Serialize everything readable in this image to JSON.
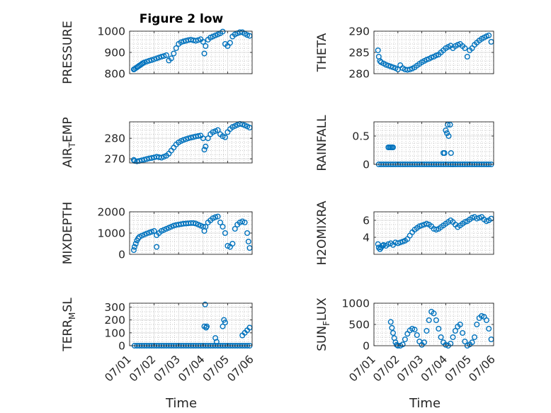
{
  "figure": {
    "title": "Figure 2 low",
    "marker_color": "#0072BD",
    "xlabel": "Time",
    "x_ticklabels": [
      "07/01",
      "07/02",
      "07/03",
      "07/04",
      "07/05",
      "07/06"
    ]
  },
  "chart_data": [
    {
      "type": "scatter",
      "id": "pressure",
      "title": "Figure 2 low",
      "ylabel": "PRESSURE",
      "ylim": [
        800,
        1000
      ],
      "yticks": [
        800,
        900,
        1000
      ],
      "xlim": [
        "07/01",
        "07/06"
      ],
      "grid": true,
      "x_days": [
        1.17,
        1.2,
        1.25,
        1.3,
        1.35,
        1.4,
        1.45,
        1.5,
        1.55,
        1.6,
        1.7,
        1.8,
        1.9,
        2.0,
        2.1,
        2.2,
        2.3,
        2.4,
        2.5,
        2.6,
        2.7,
        2.8,
        2.9,
        3.0,
        3.1,
        3.2,
        3.3,
        3.4,
        3.5,
        3.6,
        3.7,
        3.8,
        3.9,
        4.0,
        4.05,
        4.1,
        4.2,
        4.3,
        4.4,
        4.5,
        4.6,
        4.7,
        4.8,
        4.9,
        5.0,
        5.1,
        5.2,
        5.3,
        5.4,
        5.5,
        5.6,
        5.7,
        5.8,
        5.9
      ],
      "y": [
        820,
        822,
        826,
        830,
        834,
        838,
        842,
        846,
        850,
        853,
        857,
        861,
        864,
        868,
        872,
        876,
        880,
        883,
        887,
        862,
        872,
        895,
        920,
        940,
        948,
        952,
        955,
        958,
        960,
        957,
        955,
        958,
        962,
        950,
        895,
        930,
        960,
        970,
        975,
        980,
        985,
        990,
        998,
        940,
        930,
        945,
        975,
        985,
        990,
        995,
        995,
        988,
        982,
        978
      ]
    },
    {
      "type": "scatter",
      "id": "theta",
      "ylabel": "THETA",
      "ylim": [
        280,
        290
      ],
      "yticks": [
        280,
        285,
        290
      ],
      "xlim": [
        "07/01",
        "07/06"
      ],
      "grid": true,
      "x_days": [
        1.17,
        1.2,
        1.25,
        1.3,
        1.4,
        1.5,
        1.6,
        1.7,
        1.8,
        1.9,
        2.0,
        2.1,
        2.2,
        2.3,
        2.4,
        2.5,
        2.6,
        2.7,
        2.8,
        2.9,
        3.0,
        3.1,
        3.2,
        3.3,
        3.4,
        3.5,
        3.6,
        3.7,
        3.8,
        3.9,
        4.0,
        4.1,
        4.2,
        4.3,
        4.4,
        4.5,
        4.6,
        4.7,
        4.8,
        4.9,
        5.0,
        5.1,
        5.2,
        5.3,
        5.4,
        5.5,
        5.6,
        5.7,
        5.8,
        5.9
      ],
      "y": [
        285.5,
        284.0,
        283.0,
        282.7,
        282.4,
        282.1,
        281.9,
        281.7,
        281.5,
        281.3,
        281.0,
        282.0,
        281.3,
        281.0,
        280.9,
        281.0,
        281.2,
        281.5,
        281.9,
        282.3,
        282.7,
        283.0,
        283.3,
        283.5,
        283.8,
        284.0,
        284.3,
        284.5,
        285.0,
        285.5,
        286.0,
        286.3,
        286.6,
        286.0,
        286.5,
        286.8,
        287.0,
        286.5,
        286.0,
        284.0,
        285.5,
        286.0,
        286.8,
        287.3,
        287.8,
        288.2,
        288.5,
        288.8,
        289.0,
        287.5
      ]
    },
    {
      "type": "scatter",
      "id": "air_temp",
      "ylabel": "AIR_TEMP",
      "ylim": [
        268,
        288
      ],
      "yticks": [
        270,
        280
      ],
      "xlim": [
        "07/01",
        "07/06"
      ],
      "grid": true,
      "x_days": [
        1.17,
        1.2,
        1.3,
        1.4,
        1.5,
        1.6,
        1.7,
        1.8,
        1.9,
        2.0,
        2.1,
        2.2,
        2.3,
        2.4,
        2.5,
        2.6,
        2.7,
        2.8,
        2.9,
        3.0,
        3.1,
        3.2,
        3.3,
        3.4,
        3.5,
        3.6,
        3.7,
        3.8,
        3.9,
        4.0,
        4.05,
        4.1,
        4.2,
        4.3,
        4.4,
        4.5,
        4.6,
        4.7,
        4.8,
        4.9,
        5.0,
        5.1,
        5.2,
        5.3,
        5.4,
        5.5,
        5.6,
        5.7,
        5.8,
        5.9
      ],
      "y": [
        269.5,
        269.0,
        268.8,
        269.0,
        269.3,
        269.6,
        269.9,
        270.2,
        270.4,
        270.7,
        271.0,
        270.8,
        270.6,
        271.0,
        271.5,
        272.5,
        274.0,
        275.5,
        277.0,
        278.0,
        278.7,
        279.2,
        279.6,
        280.0,
        280.3,
        280.6,
        280.9,
        281.1,
        281.3,
        280.0,
        274.5,
        276.0,
        280.0,
        282.0,
        283.0,
        283.5,
        284.0,
        282.0,
        281.0,
        280.5,
        283.0,
        284.5,
        285.5,
        286.0,
        286.5,
        287.0,
        286.8,
        286.3,
        285.8,
        285.2
      ]
    },
    {
      "type": "scatter",
      "id": "rainfall",
      "ylabel": "RAINFALL",
      "ylim": [
        0,
        0.75
      ],
      "yticks": [
        0,
        0.5
      ],
      "xlim": [
        "07/01",
        "07/06"
      ],
      "grid": true,
      "x_days": [
        1.2,
        1.3,
        1.4,
        1.5,
        1.6,
        1.7,
        1.8,
        1.9,
        2.0,
        2.1,
        2.2,
        2.3,
        2.4,
        2.5,
        2.6,
        2.7,
        2.8,
        2.9,
        3.0,
        3.1,
        3.2,
        3.3,
        3.4,
        3.5,
        3.6,
        3.7,
        3.8,
        3.9,
        4.0,
        4.1,
        4.2,
        4.3,
        4.4,
        4.5,
        4.6,
        4.7,
        4.8,
        4.9,
        5.0,
        5.1,
        5.2,
        5.3,
        5.4,
        5.5,
        5.6,
        5.7,
        5.8,
        5.9,
        1.6,
        1.65,
        1.7,
        1.75,
        1.8,
        3.9,
        3.95,
        4.0,
        4.05,
        4.08,
        4.12,
        4.18,
        4.22,
        4.3
      ],
      "y": [
        0,
        0,
        0,
        0,
        0,
        0,
        0,
        0,
        0,
        0,
        0,
        0,
        0,
        0,
        0,
        0,
        0,
        0,
        0,
        0,
        0,
        0,
        0,
        0,
        0,
        0,
        0,
        0,
        0,
        0,
        0,
        0,
        0,
        0,
        0,
        0,
        0,
        0,
        0,
        0,
        0,
        0,
        0,
        0,
        0,
        0,
        0,
        0,
        0.3,
        0.3,
        0.3,
        0.3,
        0.3,
        0.2,
        0.2,
        0.6,
        0.55,
        0.7,
        0.5,
        0.7,
        0.2,
        0
      ]
    },
    {
      "type": "scatter",
      "id": "mixdepth",
      "ylabel": "MIXDEPTH",
      "ylim": [
        0,
        2000
      ],
      "yticks": [
        0,
        1000,
        2000
      ],
      "xlim": [
        "07/01",
        "07/06"
      ],
      "grid": true,
      "x_days": [
        1.17,
        1.2,
        1.25,
        1.3,
        1.35,
        1.4,
        1.5,
        1.6,
        1.7,
        1.8,
        1.9,
        2.0,
        2.1,
        2.2,
        2.3,
        2.4,
        2.5,
        2.6,
        2.7,
        2.8,
        2.9,
        3.0,
        3.1,
        3.2,
        3.3,
        3.4,
        3.5,
        3.6,
        3.7,
        3.8,
        3.9,
        4.0,
        4.05,
        4.1,
        4.2,
        4.3,
        4.4,
        4.5,
        4.6,
        4.7,
        4.8,
        4.9,
        5.0,
        5.1,
        5.2,
        5.3,
        5.4,
        5.5,
        5.6,
        5.7,
        5.8,
        5.85,
        5.9,
        2.1
      ],
      "y": [
        200,
        350,
        500,
        650,
        750,
        820,
        880,
        930,
        980,
        1020,
        1060,
        1100,
        900,
        1000,
        1100,
        1150,
        1200,
        1250,
        1300,
        1350,
        1380,
        1400,
        1420,
        1440,
        1450,
        1460,
        1470,
        1470,
        1450,
        1400,
        1350,
        1300,
        1100,
        1300,
        1500,
        1600,
        1700,
        1750,
        1780,
        1500,
        1300,
        1000,
        400,
        350,
        500,
        1200,
        1400,
        1500,
        1550,
        1500,
        1000,
        600,
        300,
        350
      ]
    },
    {
      "type": "scatter",
      "id": "h2omixra",
      "ylabel": "H2OMIXRA",
      "ylim": [
        2,
        7
      ],
      "yticks": [
        4,
        6
      ],
      "xlim": [
        "07/01",
        "07/06"
      ],
      "grid": true,
      "x_days": [
        1.17,
        1.2,
        1.25,
        1.3,
        1.35,
        1.4,
        1.5,
        1.6,
        1.7,
        1.8,
        1.9,
        2.0,
        2.1,
        2.2,
        2.3,
        2.4,
        2.5,
        2.6,
        2.7,
        2.8,
        2.9,
        3.0,
        3.1,
        3.2,
        3.3,
        3.4,
        3.5,
        3.6,
        3.7,
        3.8,
        3.9,
        4.0,
        4.1,
        4.2,
        4.3,
        4.4,
        4.5,
        4.6,
        4.7,
        4.8,
        4.9,
        5.0,
        5.1,
        5.2,
        5.3,
        5.4,
        5.5,
        5.6,
        5.7,
        5.8,
        5.9
      ],
      "y": [
        3.2,
        2.8,
        2.6,
        2.8,
        3.0,
        3.1,
        3.0,
        3.2,
        3.3,
        3.1,
        3.4,
        3.3,
        3.4,
        3.5,
        3.6,
        3.8,
        4.2,
        4.6,
        4.9,
        5.1,
        5.3,
        5.4,
        5.5,
        5.6,
        5.5,
        5.3,
        5.0,
        4.9,
        5.0,
        5.2,
        5.4,
        5.6,
        5.8,
        6.0,
        5.8,
        5.5,
        5.2,
        5.4,
        5.6,
        5.8,
        5.9,
        6.1,
        6.3,
        6.4,
        6.2,
        6.3,
        6.4,
        6.1,
        5.9,
        6.0,
        6.2
      ]
    },
    {
      "type": "scatter",
      "id": "terr_msl",
      "ylabel": "TERR_MSL",
      "ylim": [
        0,
        330
      ],
      "yticks": [
        0,
        100,
        200,
        300
      ],
      "xlim": [
        "07/01",
        "07/06"
      ],
      "grid": true,
      "x_days": [
        1.2,
        1.3,
        1.4,
        1.5,
        1.6,
        1.7,
        1.8,
        1.9,
        2.0,
        2.1,
        2.2,
        2.3,
        2.4,
        2.5,
        2.6,
        2.7,
        2.8,
        2.9,
        3.0,
        3.1,
        3.2,
        3.3,
        3.4,
        3.5,
        3.6,
        3.7,
        3.8,
        3.9,
        4.0,
        4.1,
        4.2,
        4.3,
        4.4,
        4.5,
        4.6,
        4.7,
        4.8,
        4.9,
        5.0,
        5.1,
        5.2,
        5.3,
        5.4,
        5.5,
        5.6,
        5.7,
        5.8,
        5.9,
        4.05,
        4.08,
        4.12,
        4.15,
        4.5,
        4.55,
        4.8,
        4.85,
        4.9,
        5.6,
        5.7,
        5.8,
        5.9
      ],
      "y": [
        0,
        0,
        0,
        0,
        0,
        0,
        0,
        0,
        0,
        0,
        0,
        0,
        0,
        0,
        0,
        0,
        0,
        0,
        0,
        0,
        0,
        0,
        0,
        0,
        0,
        0,
        0,
        0,
        0,
        0,
        0,
        0,
        0,
        0,
        0,
        0,
        0,
        0,
        0,
        0,
        0,
        0,
        0,
        0,
        0,
        0,
        0,
        0,
        150,
        320,
        140,
        150,
        60,
        30,
        150,
        200,
        180,
        80,
        100,
        120,
        140
      ]
    },
    {
      "type": "scatter",
      "id": "sun_flux",
      "ylabel": "SUN_FLUX",
      "ylim": [
        0,
        1000
      ],
      "yticks": [
        0,
        500,
        1000
      ],
      "xlim": [
        "07/01",
        "07/06"
      ],
      "grid": true,
      "x_days": [
        1.7,
        1.75,
        1.8,
        1.85,
        1.9,
        1.95,
        2.0,
        2.1,
        2.2,
        2.3,
        2.4,
        2.5,
        2.6,
        2.7,
        2.8,
        2.9,
        3.0,
        3.1,
        3.2,
        3.3,
        3.4,
        3.5,
        3.6,
        3.7,
        3.8,
        3.9,
        4.0,
        4.1,
        4.2,
        4.3,
        4.4,
        4.5,
        4.6,
        4.7,
        4.8,
        4.9,
        5.0,
        5.1,
        5.2,
        5.3,
        5.4,
        5.5,
        5.6,
        5.7,
        5.8,
        5.9
      ],
      "y": [
        560,
        420,
        300,
        180,
        80,
        20,
        0,
        0,
        30,
        150,
        280,
        360,
        400,
        380,
        250,
        100,
        20,
        80,
        350,
        600,
        800,
        760,
        600,
        400,
        200,
        80,
        20,
        0,
        50,
        200,
        350,
        450,
        500,
        300,
        100,
        0,
        30,
        80,
        200,
        500,
        650,
        700,
        680,
        600,
        400,
        150
      ]
    }
  ]
}
